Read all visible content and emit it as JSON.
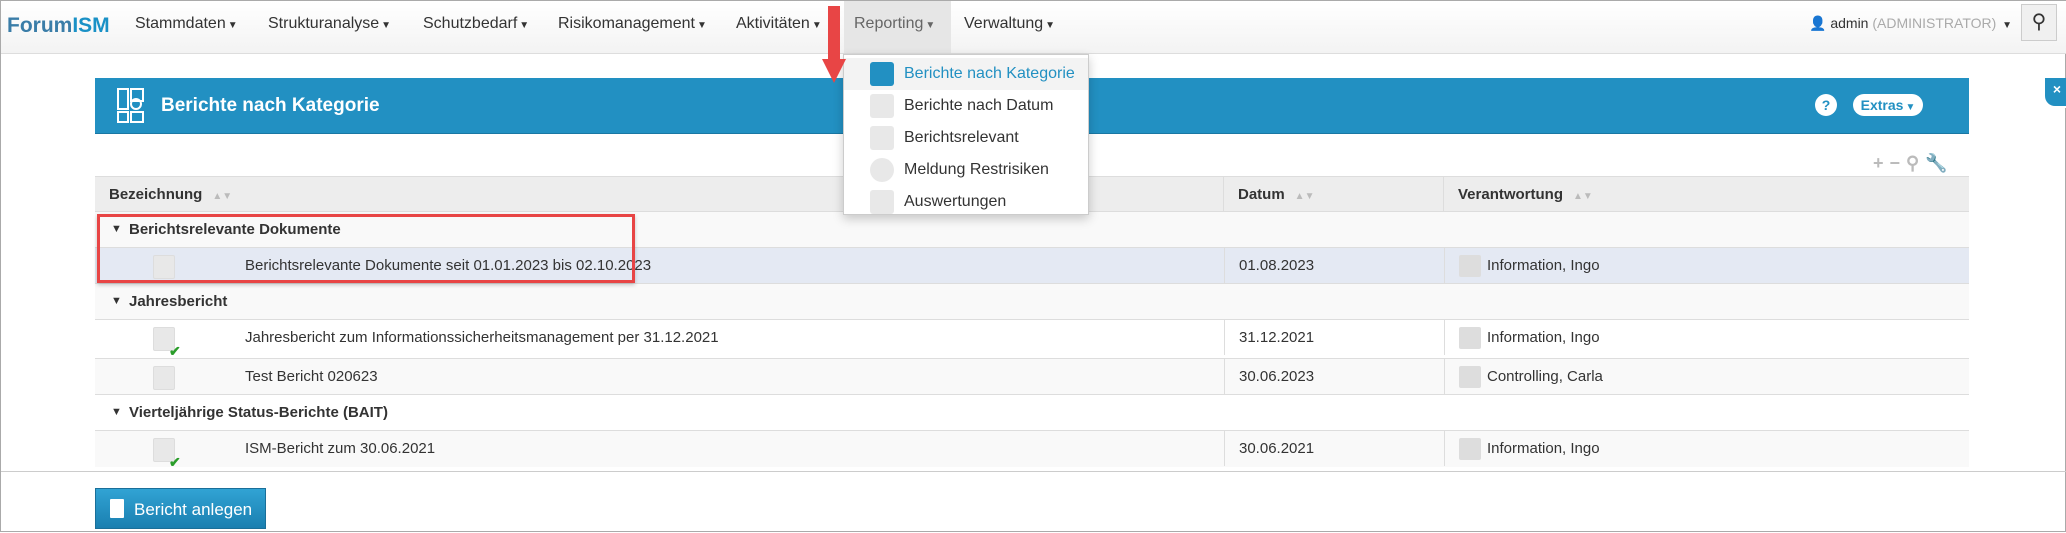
{
  "nav": {
    "logo_a": "Forum",
    "logo_b": "ISM",
    "menus": [
      "Stammdaten",
      "Strukturanalyse",
      "Schutzbedarf",
      "Risikomanagement",
      "Aktivitäten",
      "Reporting",
      "Verwaltung"
    ],
    "active_menu": "Reporting",
    "user": "admin",
    "role": "(ADMINISTRATOR)"
  },
  "dropdown": {
    "items": [
      "Berichte nach Kategorie",
      "Berichte nach Datum",
      "Berichtsrelevant",
      "Meldung Restrisiken",
      "Auswertungen"
    ]
  },
  "banner": {
    "title": "Berichte nach Kategorie",
    "help": "?",
    "extras": "Extras",
    "close": "×",
    "color": "#2290c2"
  },
  "table": {
    "headers": [
      "Bezeichnung",
      "Datum",
      "Verantwortung"
    ],
    "groups": [
      {
        "name": "Berichtsrelevante Dokumente",
        "rows": [
          {
            "title": "Berichtsrelevante Dokumente seit 01.01.2023 bis 02.10.2023",
            "date": "01.08.2023",
            "owner": "Information, Ingo",
            "checked": false
          }
        ]
      },
      {
        "name": "Jahresbericht",
        "rows": [
          {
            "title": "Jahresbericht zum Informationssicherheitsmanagement per 31.12.2021",
            "date": "31.12.2021",
            "owner": "Information, Ingo",
            "checked": true
          },
          {
            "title": "Test Bericht 020623",
            "date": "30.06.2023",
            "owner": "Controlling, Carla",
            "checked": false
          }
        ]
      },
      {
        "name": "Vierteljährige Status-Berichte (BAIT)",
        "rows": [
          {
            "title": "ISM-Bericht zum 30.06.2021",
            "date": "30.06.2021",
            "owner": "Information, Ingo",
            "checked": true
          }
        ]
      }
    ]
  },
  "footer": {
    "create_button": "Bericht anlegen"
  }
}
